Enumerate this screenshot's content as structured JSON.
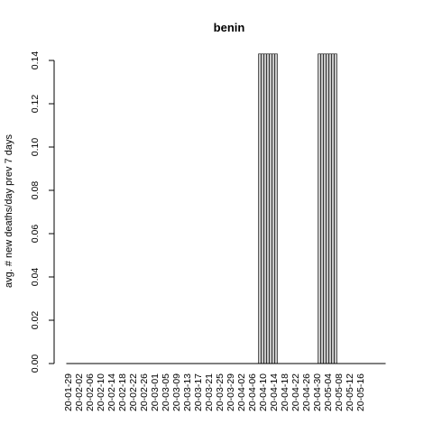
{
  "chart_data": {
    "type": "bar",
    "title": "benin",
    "xlabel": "",
    "ylabel": "avg. # new deaths/day prev  7  days",
    "ylim": [
      0,
      0.14
    ],
    "yticks": [
      0.0,
      0.02,
      0.04,
      0.06,
      0.08,
      0.1,
      0.12,
      0.14
    ],
    "ytick_labels": [
      "0.00",
      "0.02",
      "0.04",
      "0.06",
      "0.08",
      "0.10",
      "0.12",
      "0.14"
    ],
    "xtick_labels": [
      "20-01-29",
      "20-02-02",
      "20-02-06",
      "20-02-10",
      "20-02-14",
      "20-02-18",
      "20-02-22",
      "20-02-26",
      "20-03-01",
      "20-03-05",
      "20-03-09",
      "20-03-13",
      "20-03-17",
      "20-03-21",
      "20-03-25",
      "20-03-29",
      "20-04-02",
      "20-04-06",
      "20-04-10",
      "20-04-14",
      "20-04-18",
      "20-04-22",
      "20-04-26",
      "20-04-30",
      "20-05-04",
      "20-05-08",
      "20-05-12",
      "20-05-16"
    ],
    "bar_fill": "#c8c8c8",
    "bar_stroke": "#000000",
    "grid": false,
    "series": [
      {
        "start_date": "2020-01-29",
        "values": [
          0,
          0,
          0,
          0,
          0,
          0,
          0,
          0,
          0,
          0,
          0,
          0,
          0,
          0,
          0,
          0,
          0,
          0,
          0,
          0,
          0,
          0,
          0,
          0,
          0,
          0,
          0,
          0,
          0,
          0,
          0,
          0,
          0,
          0,
          0,
          0,
          0,
          0,
          0,
          0,
          0,
          0,
          0,
          0,
          0,
          0,
          0,
          0,
          0,
          0,
          0,
          0,
          0,
          0,
          0,
          0,
          0,
          0,
          0,
          0,
          0,
          0,
          0,
          0,
          0,
          0,
          0,
          0,
          0,
          0,
          0,
          0.143,
          0.143,
          0.143,
          0.143,
          0.143,
          0.143,
          0.143,
          0,
          0,
          0,
          0,
          0,
          0,
          0,
          0,
          0,
          0,
          0,
          0,
          0,
          0,
          0,
          0.143,
          0.143,
          0.143,
          0.143,
          0.143,
          0.143,
          0.143,
          0,
          0,
          0,
          0,
          0,
          0,
          0,
          0,
          0,
          0,
          0,
          0,
          0,
          0,
          0,
          0,
          0,
          0
        ]
      }
    ]
  }
}
